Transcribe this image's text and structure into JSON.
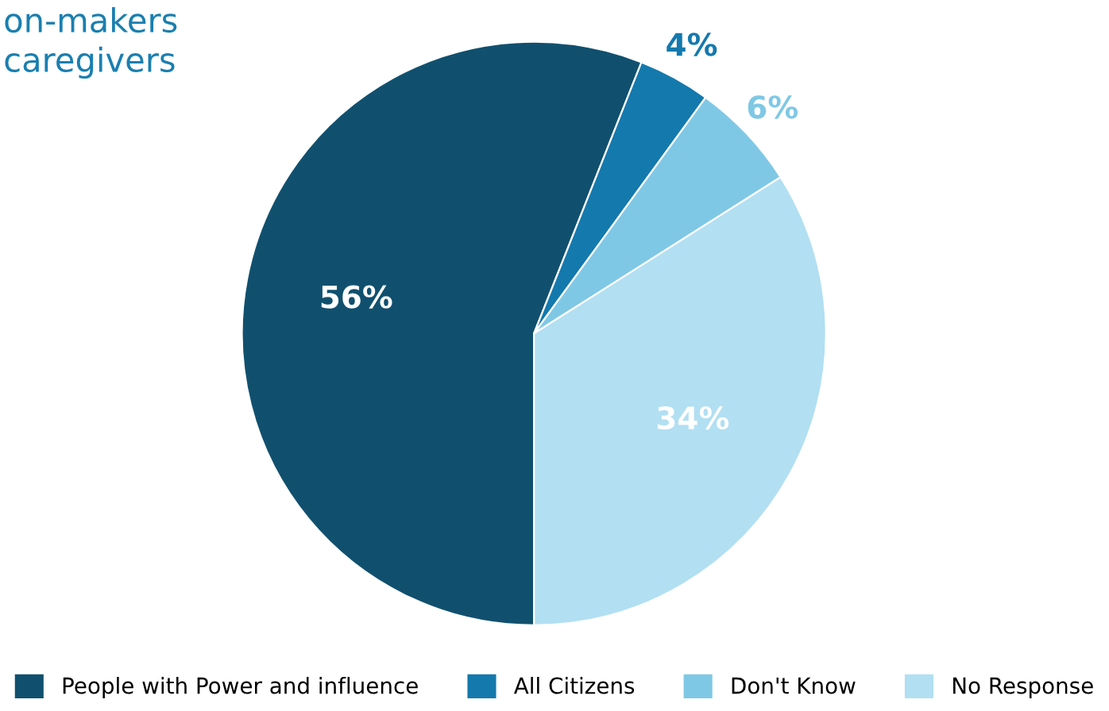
{
  "chart_data": {
    "type": "pie",
    "title": "on-makers\ncaregivers",
    "categories": [
      "People with Power and influence",
      "All Citizens",
      "Don't Know",
      "No Response"
    ],
    "values": [
      56,
      4,
      6,
      34
    ],
    "colors": [
      "#10506e",
      "#1479ad",
      "#7fc8e5",
      "#b2dff2"
    ],
    "value_labels": [
      "56%",
      "4%",
      "6%",
      "34%"
    ],
    "legend": "bottom"
  }
}
